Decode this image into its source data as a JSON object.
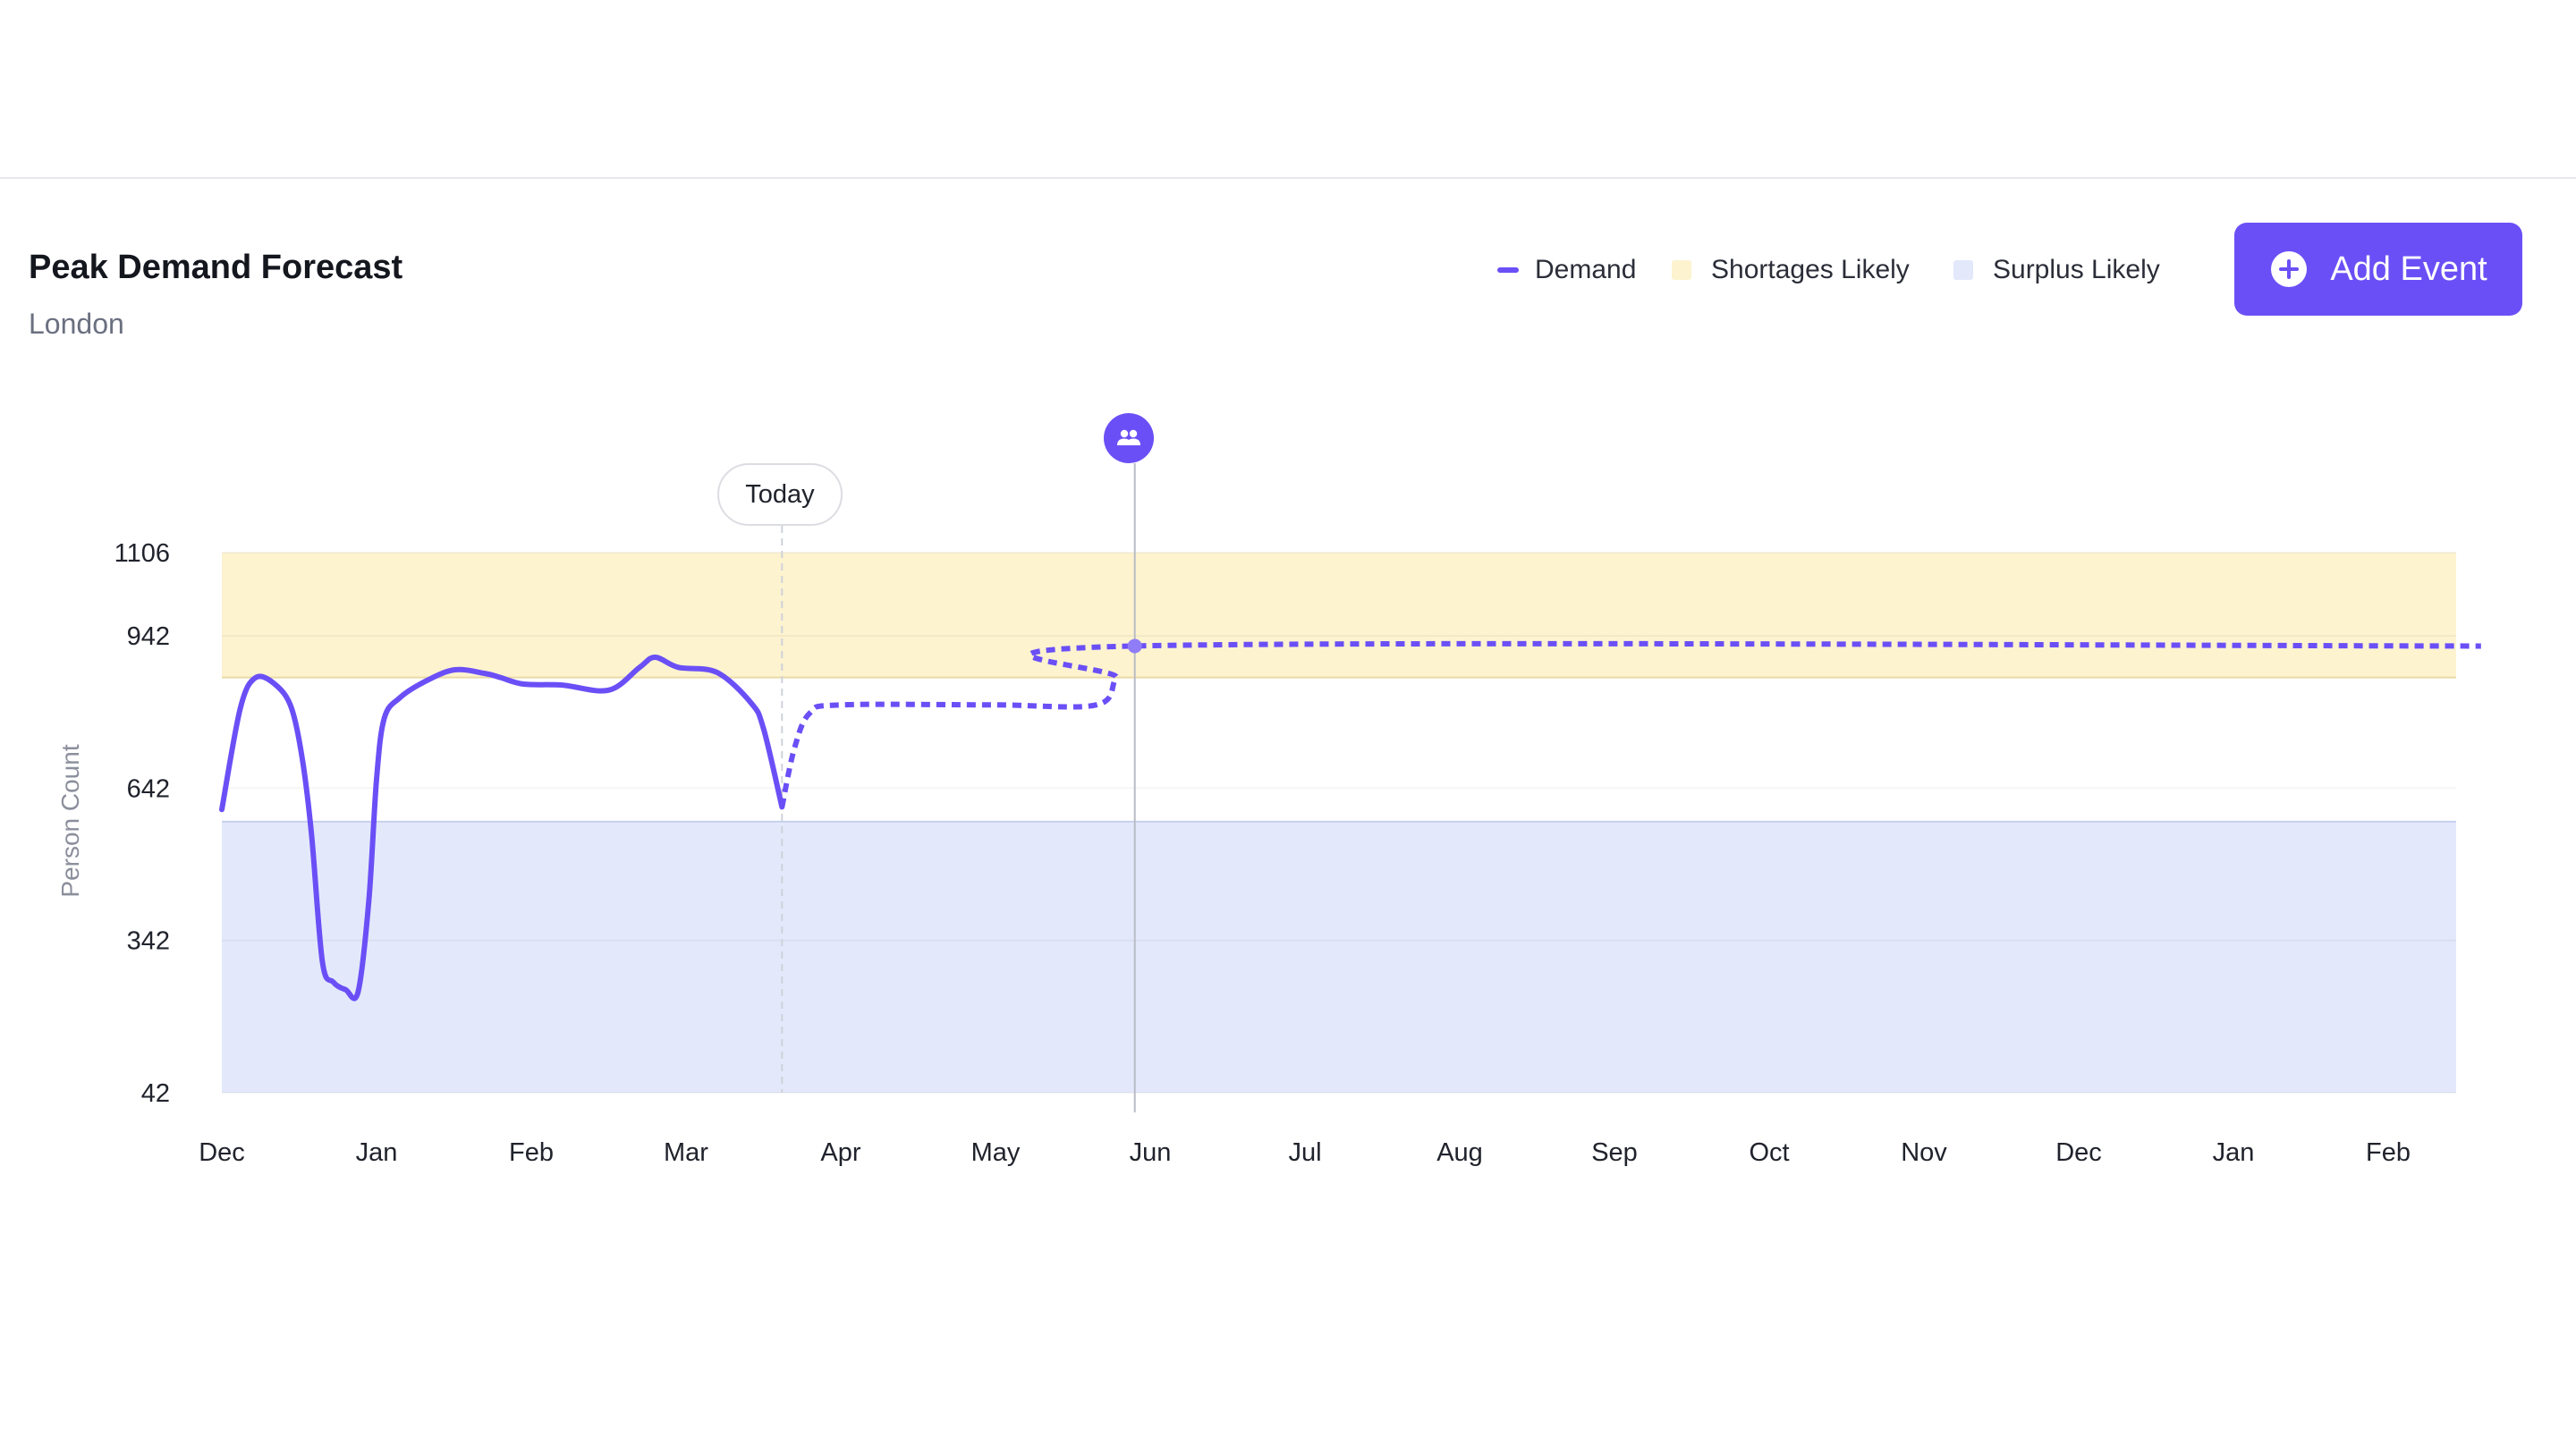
{
  "header": {
    "title": "Peak Demand Forecast",
    "subtitle": "London"
  },
  "legend": {
    "items": [
      {
        "label": "Demand",
        "color": "#6b4ff6",
        "icon": "line-swatch"
      },
      {
        "label": "Shortages Likely",
        "color": "#fdf3cf",
        "icon": "box-swatch"
      },
      {
        "label": "Surplus Likely",
        "color": "#e3e9fb",
        "icon": "box-swatch"
      }
    ]
  },
  "actions": {
    "add_event_label": "Add Event",
    "add_event_icon": "plus-circle-icon",
    "accent_color": "#6b4ff6"
  },
  "markers": {
    "today_label": "Today",
    "event_icon": "people-icon"
  },
  "chart_data": {
    "type": "line",
    "title": "Peak Demand Forecast",
    "subtitle": "London",
    "ylabel": "Person Count",
    "xlabel": "",
    "yticks": [
      42,
      342,
      642,
      942,
      1106
    ],
    "ylim": [
      42,
      1106
    ],
    "xticks": [
      "Dec",
      "Jan",
      "Feb",
      "Mar",
      "Apr",
      "May",
      "Jun",
      "Jul",
      "Aug",
      "Sep",
      "Oct",
      "Nov",
      "Dec",
      "Jan",
      "Feb"
    ],
    "xlim": [
      0,
      14.6
    ],
    "grid": true,
    "legend_position": "top-right",
    "bands": [
      {
        "name": "Shortages Likely",
        "from": 860,
        "to": 1106,
        "color": "#fdf3cf"
      },
      {
        "name": "Surplus Likely",
        "from": 42,
        "to": 576,
        "color": "#e3e9fb"
      }
    ],
    "today_x": 3.62,
    "event_x": 5.9,
    "series": [
      {
        "name": "Demand",
        "style": "solid",
        "color": "#6b4ff6",
        "points": [
          [
            0,
            600
          ],
          [
            0.12,
            800
          ],
          [
            0.22,
            860
          ],
          [
            0.35,
            845
          ],
          [
            0.45,
            800
          ],
          [
            0.52,
            700
          ],
          [
            0.58,
            550
          ],
          [
            0.65,
            300
          ],
          [
            0.72,
            260
          ],
          [
            0.8,
            245
          ],
          [
            0.88,
            240
          ],
          [
            0.95,
            420
          ],
          [
            1.0,
            660
          ],
          [
            1.05,
            780
          ],
          [
            1.15,
            820
          ],
          [
            1.3,
            850
          ],
          [
            1.5,
            875
          ],
          [
            1.7,
            868
          ],
          [
            1.8,
            860
          ],
          [
            1.95,
            847
          ],
          [
            2.2,
            845
          ],
          [
            2.5,
            835
          ],
          [
            2.7,
            880
          ],
          [
            2.8,
            900
          ],
          [
            2.95,
            880
          ],
          [
            3.2,
            870
          ],
          [
            3.42,
            810
          ],
          [
            3.5,
            760
          ],
          [
            3.62,
            605
          ]
        ]
      },
      {
        "name": "Demand",
        "style": "dashed",
        "color": "#6b4ff6",
        "points": [
          [
            3.62,
            605
          ],
          [
            3.7,
            720
          ],
          [
            3.8,
            790
          ],
          [
            4.0,
            806
          ],
          [
            5.0,
            806
          ],
          [
            5.65,
            806
          ],
          [
            5.78,
            860
          ],
          [
            5.9,
            922
          ],
          [
            14.6,
            922
          ]
        ]
      }
    ]
  }
}
